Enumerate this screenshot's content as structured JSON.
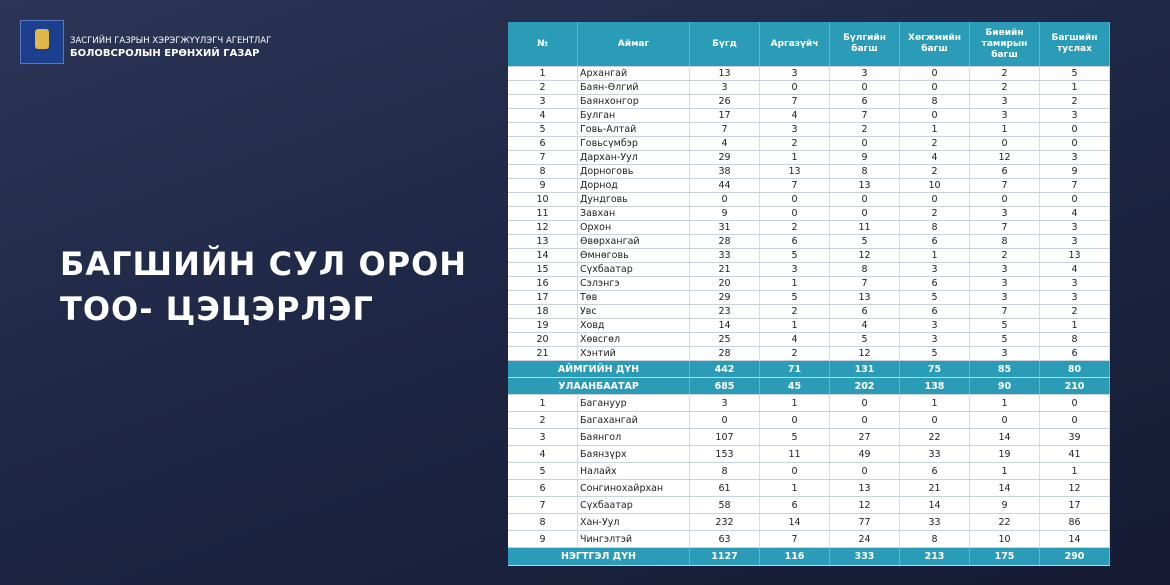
{
  "header": {
    "org_line1": "ЗАСГИЙН ГАЗРЫН ХЭРЭГЖҮҮЛЭГЧ АГЕНТЛАГ",
    "org_line2": "БОЛОВСРОЛЫН ЕРӨНХИЙ ГАЗАР"
  },
  "title": [
    "БАГШИЙН СУЛ ОРОН",
    "ТОО- ЦЭЦЭРЛЭГ"
  ],
  "table": {
    "columns": [
      "№",
      "Аймаг",
      "Бүгд",
      "Аргазүйч",
      "Бүлгийн багш",
      "Хөгжмийн багш",
      "Биеийн тамирын багш",
      "Багшийн туслах"
    ],
    "aimag_rows": [
      [
        1,
        "Архангай",
        13,
        3,
        3,
        0,
        2,
        5
      ],
      [
        2,
        "Баян-Өлгий",
        3,
        0,
        0,
        0,
        2,
        1
      ],
      [
        3,
        "Баянхонгор",
        26,
        7,
        6,
        8,
        3,
        2
      ],
      [
        4,
        "Булган",
        17,
        4,
        7,
        0,
        3,
        3
      ],
      [
        5,
        "Говь-Алтай",
        7,
        3,
        2,
        1,
        1,
        0
      ],
      [
        6,
        "Говьсүмбэр",
        4,
        2,
        0,
        2,
        0,
        0
      ],
      [
        7,
        "Дархан-Уул",
        29,
        1,
        9,
        4,
        12,
        3
      ],
      [
        8,
        "Дорноговь",
        38,
        13,
        8,
        2,
        6,
        9
      ],
      [
        9,
        "Дорнод",
        44,
        7,
        13,
        10,
        7,
        7
      ],
      [
        10,
        "Дундговь",
        0,
        0,
        0,
        0,
        0,
        0
      ],
      [
        11,
        "Завхан",
        9,
        0,
        0,
        2,
        3,
        4
      ],
      [
        12,
        "Орхон",
        31,
        2,
        11,
        8,
        7,
        3
      ],
      [
        13,
        "Өвөрхангай",
        28,
        6,
        5,
        6,
        8,
        3
      ],
      [
        14,
        "Өмнөговь",
        33,
        5,
        12,
        1,
        2,
        13
      ],
      [
        15,
        "Сүхбаатар",
        21,
        3,
        8,
        3,
        3,
        4
      ],
      [
        16,
        "Сэлэнгэ",
        20,
        1,
        7,
        6,
        3,
        3
      ],
      [
        17,
        "Төв",
        29,
        5,
        13,
        5,
        3,
        3
      ],
      [
        18,
        "Увс",
        23,
        2,
        6,
        6,
        7,
        2
      ],
      [
        19,
        "Ховд",
        14,
        1,
        4,
        3,
        5,
        1
      ],
      [
        20,
        "Хөвсгөл",
        25,
        4,
        5,
        3,
        5,
        8
      ],
      [
        21,
        "Хэнтий",
        28,
        2,
        12,
        5,
        3,
        6
      ]
    ],
    "aimag_total": [
      "АЙМГИЙН ДҮН",
      442,
      71,
      131,
      75,
      85,
      80
    ],
    "ulaanbaatar": [
      "УЛААНБААТАР",
      685,
      45,
      202,
      138,
      90,
      210
    ],
    "district_rows": [
      [
        1,
        "Багануур",
        3,
        1,
        0,
        1,
        1,
        0
      ],
      [
        2,
        "Багахангай",
        0,
        0,
        0,
        0,
        0,
        0
      ],
      [
        3,
        "Баянгол",
        107,
        5,
        27,
        22,
        14,
        39
      ],
      [
        4,
        "Баянзүрх",
        153,
        11,
        49,
        33,
        19,
        41
      ],
      [
        5,
        "Налайх",
        8,
        0,
        0,
        6,
        1,
        1
      ],
      [
        6,
        "Сонгинохайрхан",
        61,
        1,
        13,
        21,
        14,
        12
      ],
      [
        7,
        "Сүхбаатар",
        58,
        6,
        12,
        14,
        9,
        17
      ],
      [
        8,
        "Хан-Уул",
        232,
        14,
        77,
        33,
        22,
        86
      ],
      [
        9,
        "Чингэлтэй",
        63,
        7,
        24,
        8,
        10,
        14
      ]
    ],
    "grand_total": [
      "НЭГТГЭЛ ДҮН",
      1127,
      116,
      333,
      213,
      175,
      290
    ]
  }
}
